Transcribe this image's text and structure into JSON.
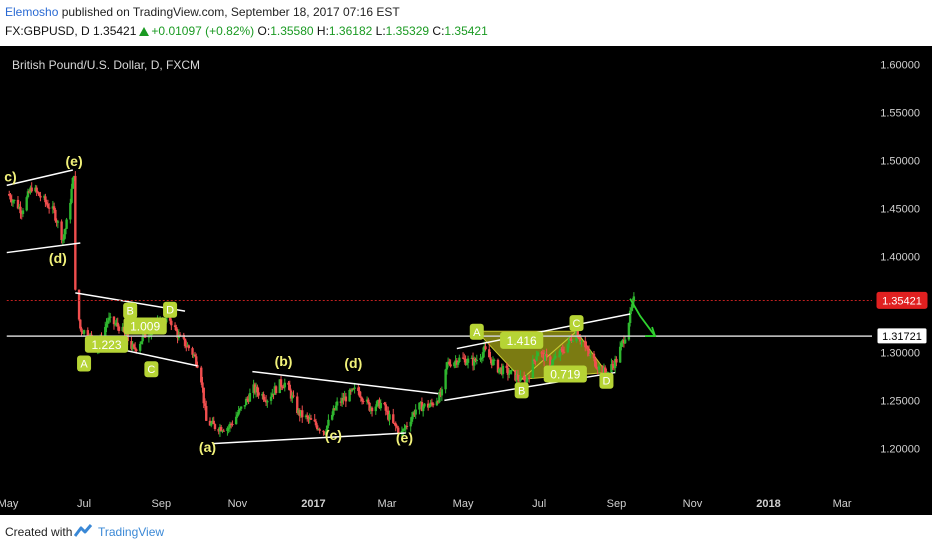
{
  "header": {
    "author": "Elemosho",
    "published": " published on TradingView.com, September 18, 2017 07:16 EST",
    "symbol": "FX:GBPUSD, D",
    "last": "1.35421",
    "change": "+0.01097 (+0.82%)",
    "o_label": "O:",
    "o_val": "1.35580",
    "h_label": "H:",
    "h_val": "1.36182",
    "l_label": "L:",
    "l_val": "1.35329",
    "c_label": "C:",
    "c_val": "1.35421"
  },
  "footer": {
    "created_with": "Created with",
    "brand": "TradingView"
  },
  "colors": {
    "up": "#2fb62f",
    "down": "#f04e4e",
    "annotation_fill": "#b6d435",
    "wave_label": "#f2f27a",
    "pattern_fill": "#9a9a16",
    "last_price": "#e02020"
  },
  "chart_data": {
    "type": "candlestick",
    "title": "British Pound/U.S. Dollar, D, FXCM",
    "ylim": [
      1.165,
      1.615
    ],
    "y_ticks": [
      "1.60000",
      "1.55000",
      "1.50000",
      "1.45000",
      "1.40000",
      "1.35000",
      "1.30000",
      "1.25000",
      "1.20000"
    ],
    "x_ticks": [
      "May",
      "Jul",
      "Sep",
      "Nov",
      "2017",
      "Mar",
      "May",
      "Jul",
      "Sep",
      "Nov",
      "2018",
      "Mar"
    ],
    "x_tick_dates": [
      "2016-05-01",
      "2016-07-01",
      "2016-09-01",
      "2016-11-01",
      "2017-01-01",
      "2017-03-01",
      "2017-05-01",
      "2017-07-01",
      "2017-09-01",
      "2017-11-01",
      "2018-01-01",
      "2018-03-01"
    ],
    "x_range": [
      "2016-05-01",
      "2018-03-25"
    ],
    "price_labels": [
      {
        "text": "1.35421",
        "value": 1.35421,
        "style": "last"
      },
      {
        "text": "1.31721",
        "value": 1.31721,
        "style": "level"
      }
    ],
    "path": [
      [
        "2016-05-01",
        1.465
      ],
      [
        "2016-05-12",
        1.448
      ],
      [
        "2016-05-20",
        1.472
      ],
      [
        "2016-05-30",
        1.458
      ],
      [
        "2016-06-07",
        1.446
      ],
      [
        "2016-06-14",
        1.418
      ],
      [
        "2016-06-18",
        1.44
      ],
      [
        "2016-06-23",
        1.488
      ],
      [
        "2016-06-24",
        1.362
      ],
      [
        "2016-06-28",
        1.325
      ],
      [
        "2016-07-05",
        1.318
      ],
      [
        "2016-07-12",
        1.304
      ],
      [
        "2016-07-20",
        1.334
      ],
      [
        "2016-07-30",
        1.326
      ],
      [
        "2016-08-10",
        1.302
      ],
      [
        "2016-08-18",
        1.317
      ],
      [
        "2016-08-28",
        1.328
      ],
      [
        "2016-09-06",
        1.34
      ],
      [
        "2016-09-15",
        1.316
      ],
      [
        "2016-09-25",
        1.302
      ],
      [
        "2016-10-02",
        1.284
      ],
      [
        "2016-10-07",
        1.228
      ],
      [
        "2016-10-15",
        1.222
      ],
      [
        "2016-10-25",
        1.222
      ],
      [
        "2016-11-04",
        1.241
      ],
      [
        "2016-11-14",
        1.262
      ],
      [
        "2016-11-25",
        1.252
      ],
      [
        "2016-12-05",
        1.267
      ],
      [
        "2016-12-10",
        1.268
      ],
      [
        "2016-12-20",
        1.237
      ],
      [
        "2016-12-30",
        1.228
      ],
      [
        "2017-01-10",
        1.218
      ],
      [
        "2017-01-20",
        1.246
      ],
      [
        "2017-01-30",
        1.256
      ],
      [
        "2017-02-05",
        1.262
      ],
      [
        "2017-02-15",
        1.243
      ],
      [
        "2017-02-25",
        1.247
      ],
      [
        "2017-03-05",
        1.226
      ],
      [
        "2017-03-13",
        1.216
      ],
      [
        "2017-03-25",
        1.243
      ],
      [
        "2017-04-05",
        1.245
      ],
      [
        "2017-04-15",
        1.258
      ],
      [
        "2017-04-18",
        1.288
      ],
      [
        "2017-04-28",
        1.293
      ],
      [
        "2017-05-10",
        1.29
      ],
      [
        "2017-05-18",
        1.302
      ],
      [
        "2017-05-28",
        1.284
      ],
      [
        "2017-06-08",
        1.278
      ],
      [
        "2017-06-20",
        1.268
      ],
      [
        "2017-06-30",
        1.302
      ],
      [
        "2017-07-10",
        1.288
      ],
      [
        "2017-07-20",
        1.302
      ],
      [
        "2017-07-31",
        1.322
      ],
      [
        "2017-08-08",
        1.302
      ],
      [
        "2017-08-18",
        1.284
      ],
      [
        "2017-08-24",
        1.278
      ],
      [
        "2017-09-01",
        1.292
      ],
      [
        "2017-09-08",
        1.318
      ],
      [
        "2017-09-15",
        1.354
      ]
    ],
    "trendlines": [
      {
        "p1": [
          "2016-04-30",
          1.474
        ],
        "p2": [
          "2016-06-22",
          1.49
        ],
        "color": "#ffffff"
      },
      {
        "p1": [
          "2016-04-30",
          1.404
        ],
        "p2": [
          "2016-06-28",
          1.414
        ],
        "color": "#ffffff"
      },
      {
        "p1": [
          "2016-06-24",
          1.362
        ],
        "p2": [
          "2016-09-20",
          1.343
        ],
        "color": "#ffffff"
      },
      {
        "p1": [
          "2016-07-02",
          1.311
        ],
        "p2": [
          "2016-09-30",
          1.286
        ],
        "color": "#ffffff"
      },
      {
        "p1": [
          "2016-11-13",
          1.28
        ],
        "p2": [
          "2017-04-11",
          1.257
        ],
        "color": "#ffffff"
      },
      {
        "p1": [
          "2016-10-12",
          1.205
        ],
        "p2": [
          "2017-03-16",
          1.216
        ],
        "color": "#ffffff"
      },
      {
        "p1": [
          "2017-04-26",
          1.304
        ],
        "p2": [
          "2017-09-12",
          1.34
        ],
        "color": "#ffffff"
      },
      {
        "p1": [
          "2017-04-16",
          1.25
        ],
        "p2": [
          "2017-08-31",
          1.279
        ],
        "color": "#ffffff"
      },
      {
        "p1": [
          "2016-04-30",
          1.317
        ],
        "p2": [
          "2018-03-25",
          1.317
        ],
        "color": "#cfcfcf"
      },
      {
        "p1": [
          "2016-04-30",
          1.354
        ],
        "p2": [
          "2018-03-25",
          1.354
        ],
        "color": "#c02020",
        "dashed": true
      }
    ],
    "harmonic_patterns": [
      {
        "points": [
          [
            "2017-05-12",
            1.322
          ],
          [
            "2017-06-17",
            1.272
          ],
          [
            "2017-07-31",
            1.322
          ],
          [
            "2017-08-24",
            1.279
          ]
        ]
      }
    ],
    "projection_arrow": {
      "points": [
        [
          "2017-09-12",
          1.356
        ],
        [
          "2017-09-20",
          1.338
        ],
        [
          "2017-10-02",
          1.317
        ]
      ],
      "color": "#2fd12f"
    },
    "wave_labels": [
      {
        "text": "c)",
        "at": [
          "2016-05-03",
          1.478
        ]
      },
      {
        "text": "(e)",
        "at": [
          "2016-06-23",
          1.494
        ]
      },
      {
        "text": "(d)",
        "at": [
          "2016-06-10",
          1.393
        ]
      },
      {
        "text": "(a)",
        "at": [
          "2016-10-08",
          1.196
        ]
      },
      {
        "text": "(b)",
        "at": [
          "2016-12-08",
          1.286
        ]
      },
      {
        "text": "(c)",
        "at": [
          "2017-01-17",
          1.209
        ]
      },
      {
        "text": "(d)",
        "at": [
          "2017-02-02",
          1.284
        ]
      },
      {
        "text": "(e)",
        "at": [
          "2017-03-15",
          1.206
        ]
      }
    ],
    "point_labels": [
      {
        "text": "A",
        "at": [
          "2016-07-01",
          1.289
        ]
      },
      {
        "text": "B",
        "at": [
          "2016-08-07",
          1.344
        ]
      },
      {
        "text": "C",
        "at": [
          "2016-08-24",
          1.283
        ]
      },
      {
        "text": "D",
        "at": [
          "2016-09-08",
          1.345
        ]
      },
      {
        "text": "A",
        "at": [
          "2017-05-12",
          1.322
        ]
      },
      {
        "text": "B",
        "at": [
          "2017-06-17",
          1.261
        ]
      },
      {
        "text": "C",
        "at": [
          "2017-07-31",
          1.331
        ]
      },
      {
        "text": "D",
        "at": [
          "2017-08-24",
          1.271
        ]
      }
    ],
    "ratio_labels": [
      {
        "text": "1.009",
        "at": [
          "2016-08-19",
          1.328
        ]
      },
      {
        "text": "1.223",
        "at": [
          "2016-07-19",
          1.309
        ]
      },
      {
        "text": "1.416",
        "at": [
          "2017-06-17",
          1.313
        ]
      },
      {
        "text": "0.719",
        "at": [
          "2017-07-22",
          1.278
        ]
      }
    ]
  }
}
